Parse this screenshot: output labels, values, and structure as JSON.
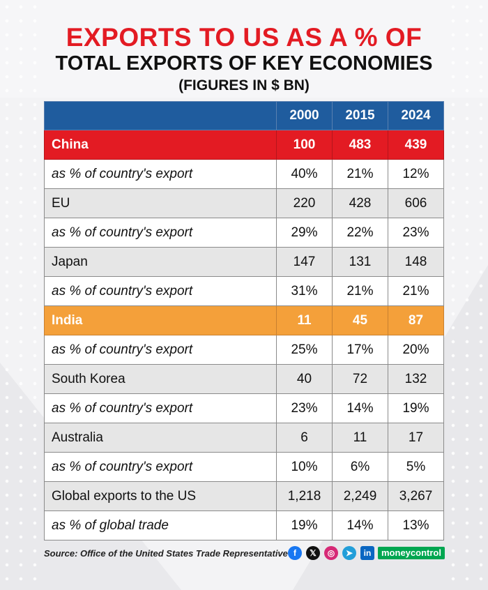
{
  "title": {
    "line1": "EXPORTS TO US AS A % OF",
    "line2": "TOTAL EXPORTS OF KEY ECONOMIES",
    "line3": "(FIGURES IN $ BN)"
  },
  "colors": {
    "title_red": "#e31b23",
    "header_blue": "#1f5c9e",
    "china_red": "#e31b23",
    "india_orange": "#f4a03a",
    "brand_green": "#00a651"
  },
  "chart_data": {
    "type": "table",
    "columns": [
      "",
      "2000",
      "2015",
      "2024"
    ],
    "rows": [
      {
        "label": "China",
        "values": [
          "100",
          "483",
          "439"
        ]
      },
      {
        "label": "as % of country's export",
        "values": [
          "40%",
          "21%",
          "12%"
        ]
      },
      {
        "label": "EU",
        "values": [
          "220",
          "428",
          "606"
        ]
      },
      {
        "label": "as % of country's export",
        "values": [
          "29%",
          "22%",
          "23%"
        ]
      },
      {
        "label": "Japan",
        "values": [
          "147",
          "131",
          "148"
        ]
      },
      {
        "label": "as % of country's export",
        "values": [
          "31%",
          "21%",
          "21%"
        ]
      },
      {
        "label": "India",
        "values": [
          "11",
          "45",
          "87"
        ]
      },
      {
        "label": "as % of country's export",
        "values": [
          "25%",
          "17%",
          "20%"
        ]
      },
      {
        "label": "South Korea",
        "values": [
          "40",
          "72",
          "132"
        ]
      },
      {
        "label": "as % of country's export",
        "values": [
          "23%",
          "14%",
          "19%"
        ]
      },
      {
        "label": "Australia",
        "values": [
          "6",
          "11",
          "17"
        ]
      },
      {
        "label": "as % of country's export",
        "values": [
          "10%",
          "6%",
          "5%"
        ]
      },
      {
        "label": "Global exports to the US",
        "values": [
          "1,218",
          "2,249",
          "3,267"
        ]
      },
      {
        "label": "as % of global trade",
        "values": [
          "19%",
          "14%",
          "13%"
        ]
      }
    ]
  },
  "footer": {
    "source": "Source: Office of the United States Trade Representative",
    "social_icons": [
      "facebook-icon",
      "x-icon",
      "instagram-icon",
      "telegram-icon",
      "linkedin-icon"
    ],
    "brand": "moneycontrol"
  }
}
